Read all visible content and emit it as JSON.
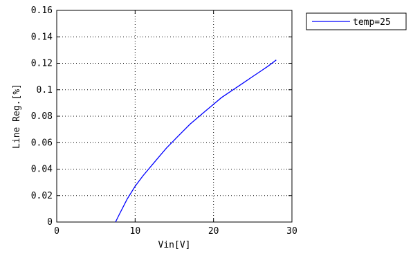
{
  "chart_data": {
    "type": "line",
    "xlabel": "Vin[V]",
    "ylabel": "Line Reg.[%]",
    "xlim": [
      0,
      30
    ],
    "ylim": [
      0,
      0.16
    ],
    "xticks": [
      "0",
      "10",
      "20",
      "30"
    ],
    "yticks": [
      "0",
      "0.02",
      "0.04",
      "0.06",
      "0.08",
      "0.1",
      "0.12",
      "0.14",
      "0.16"
    ],
    "grid": true,
    "legend_position": "outside-top-right",
    "series": [
      {
        "name": "temp=25",
        "color": "#0000ff",
        "x": [
          7.5,
          8.0,
          9.0,
          10.0,
          11.0,
          12.0,
          13.0,
          14.0,
          15.0,
          16.0,
          17.0,
          18.0,
          19.0,
          20.0,
          21.0,
          22.0,
          23.0,
          24.0,
          25.0,
          26.0,
          27.0,
          28.0
        ],
        "y": [
          0.0,
          0.006,
          0.0175,
          0.027,
          0.035,
          0.042,
          0.049,
          0.056,
          0.062,
          0.068,
          0.074,
          0.079,
          0.084,
          0.089,
          0.094,
          0.098,
          0.102,
          0.106,
          0.11,
          0.114,
          0.118,
          0.1225
        ]
      }
    ]
  }
}
